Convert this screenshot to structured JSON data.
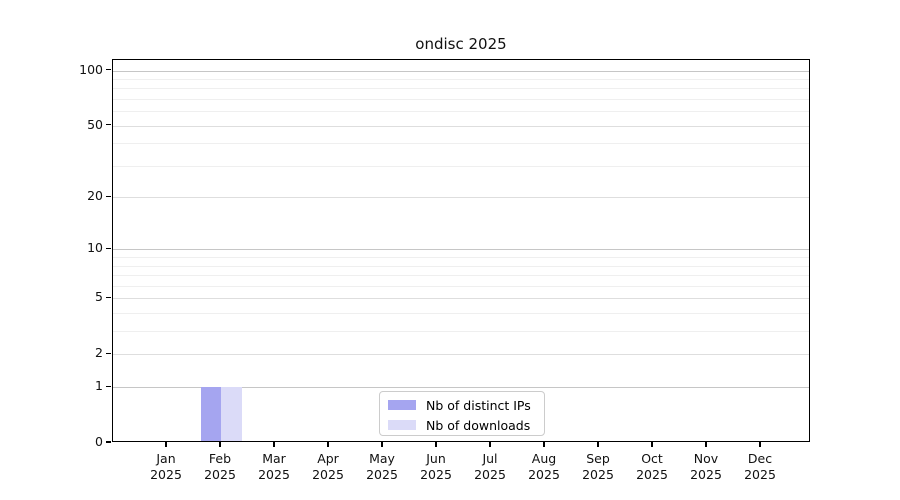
{
  "chart_data": {
    "type": "bar",
    "title": "ondisc 2025",
    "categories": [
      "Jan 2025",
      "Feb 2025",
      "Mar 2025",
      "Apr 2025",
      "May 2025",
      "Jun 2025",
      "Jul 2025",
      "Aug 2025",
      "Sep 2025",
      "Oct 2025",
      "Nov 2025",
      "Dec 2025"
    ],
    "x_tick_months": [
      "Jan",
      "Feb",
      "Mar",
      "Apr",
      "May",
      "Jun",
      "Jul",
      "Aug",
      "Sep",
      "Oct",
      "Nov",
      "Dec"
    ],
    "x_tick_year": "2025",
    "series": [
      {
        "name": "Nb of distinct IPs",
        "color": "#a5a5f0",
        "values": [
          0,
          1,
          0,
          0,
          0,
          0,
          0,
          0,
          0,
          0,
          0,
          0
        ]
      },
      {
        "name": "Nb of downloads",
        "color": "#dbdbf8",
        "values": [
          0,
          1,
          0,
          0,
          0,
          0,
          0,
          0,
          0,
          0,
          0,
          0
        ]
      }
    ],
    "yscale": "log1p",
    "ylim": [
      0,
      114
    ],
    "y_major_ticks": [
      0,
      1,
      2,
      5,
      10,
      20,
      50,
      100
    ],
    "y_minor_ticks": [
      3,
      4,
      6,
      7,
      8,
      9,
      30,
      40,
      60,
      70,
      80,
      90
    ],
    "grid": true,
    "legend": {
      "position": "lower-center",
      "entries": [
        "Nb of distinct IPs",
        "Nb of downloads"
      ]
    }
  },
  "colors": {
    "background": "#ffffff",
    "axis": "#000000",
    "grid_major": "#dedede",
    "grid_decade": "#c6c6c6",
    "grid_minor": "#efefef",
    "legend_border": "#cccccc",
    "bar_distinct_ips": "#a5a5f0",
    "bar_downloads": "#dbdbf8",
    "text": "#111111"
  }
}
